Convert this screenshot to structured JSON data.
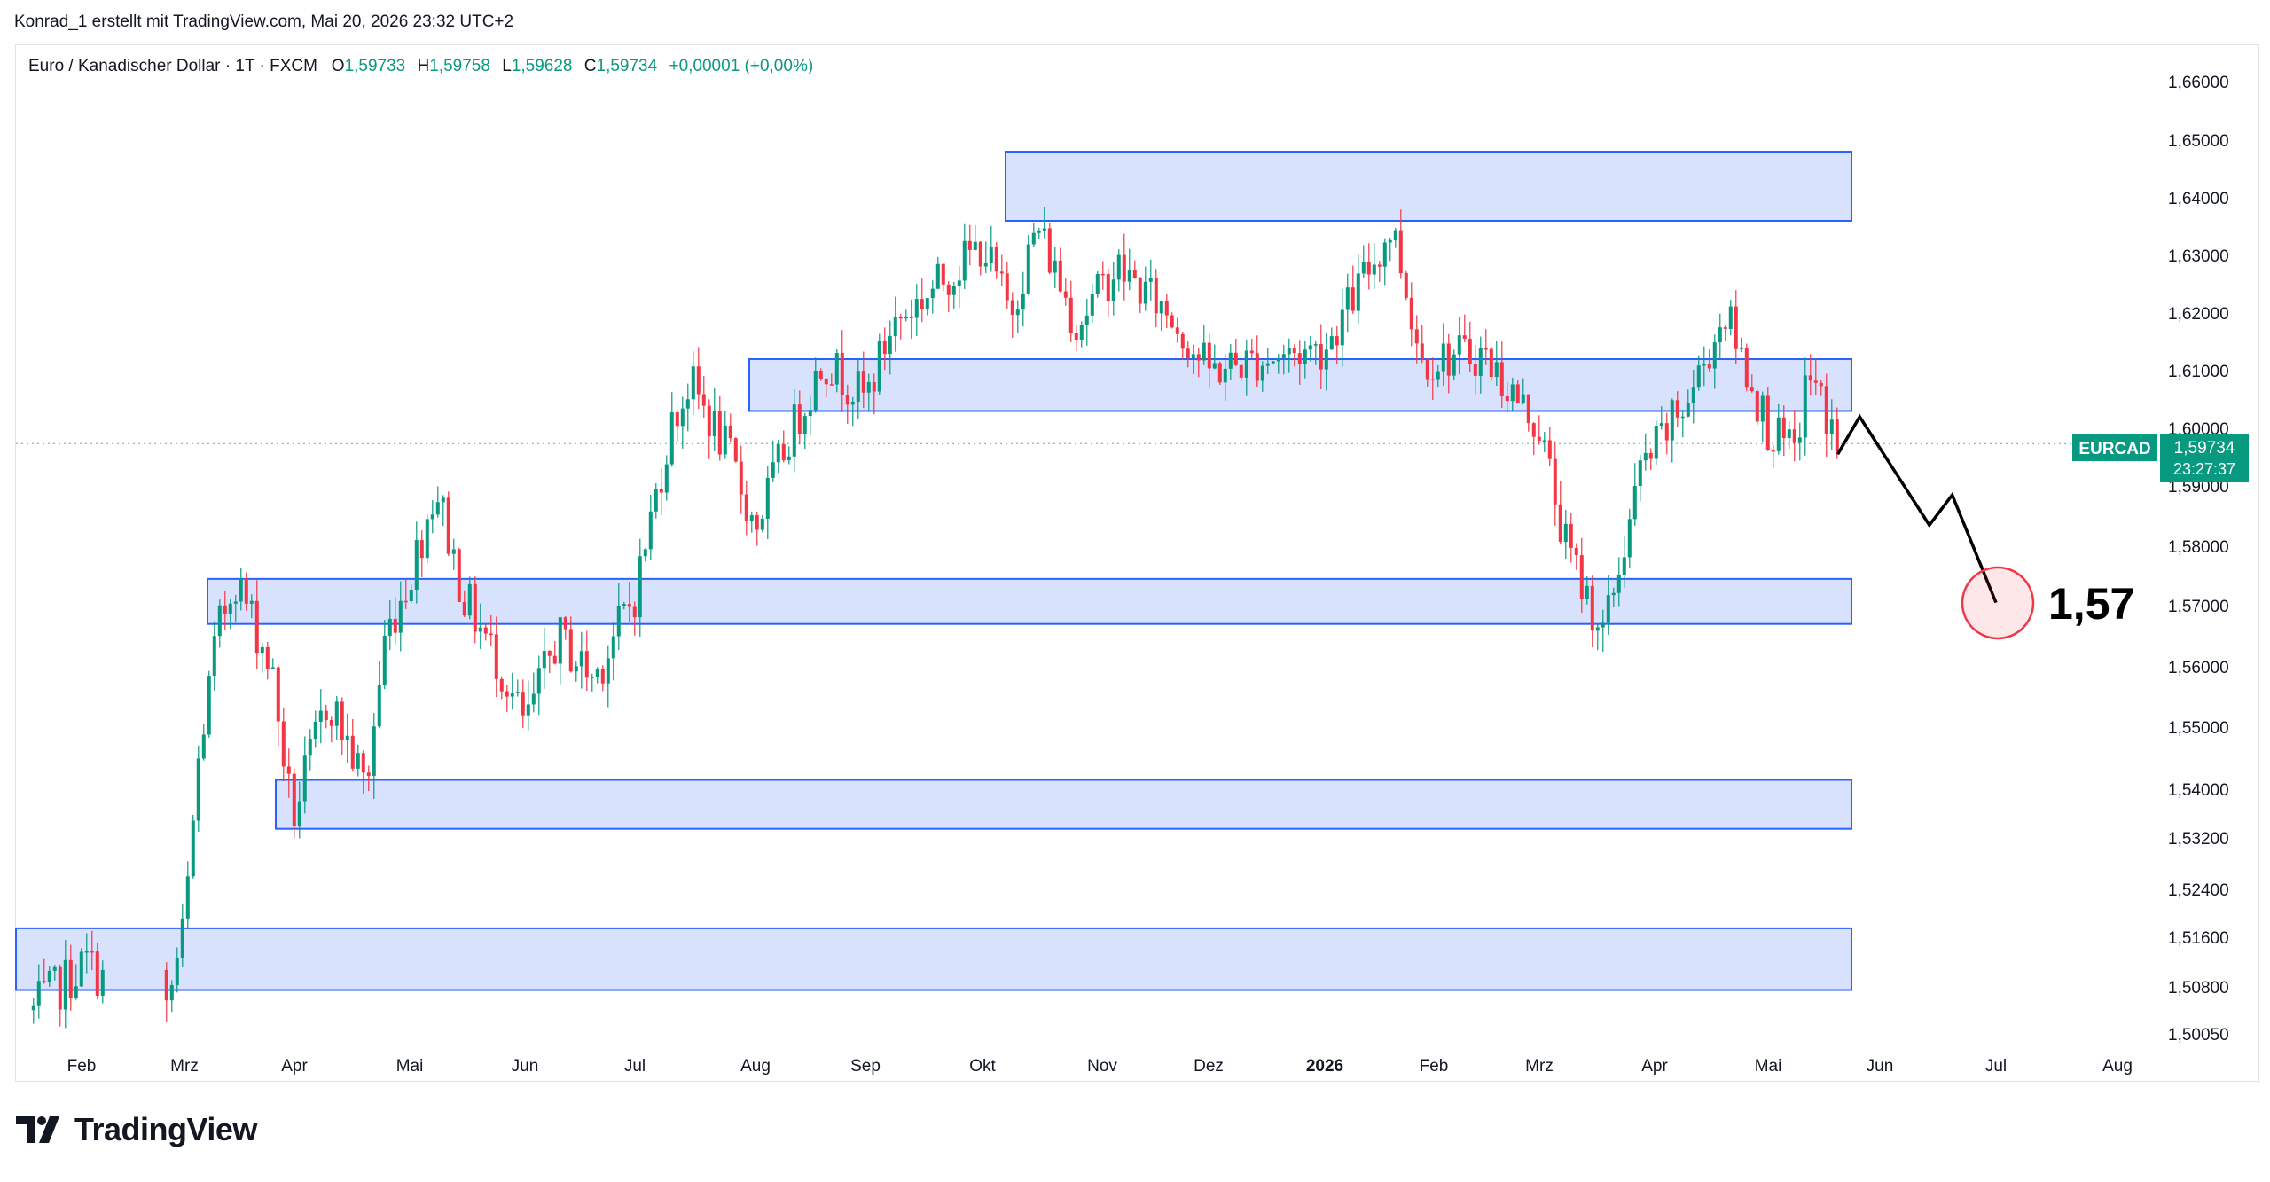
{
  "header": {
    "attribution": "Konrad_1 erstellt mit TradingView.com, Mai 20, 2026 23:32 UTC+2"
  },
  "legend": {
    "symbol_text": "Euro / Kanadischer Dollar · 1T · FXCM",
    "o_key": "O",
    "o_val": "1,59733",
    "h_key": "H",
    "h_val": "1,59758",
    "l_key": "L",
    "l_val": "1,59628",
    "c_key": "C",
    "c_val": "1,59734",
    "change": "+0,00001 (+0,00%)"
  },
  "price_tag": {
    "symbol": "EURCAD",
    "price": "1,59734",
    "countdown": "23:27:37"
  },
  "annotation": {
    "target_label": "1,57"
  },
  "brand": {
    "name": "TradingView"
  },
  "colors": {
    "up": "#089981",
    "down": "#f23645",
    "zone_fill": "#d6e0fd",
    "zone_border": "#2962ff",
    "target_circle": "#f23645"
  },
  "chart_data": {
    "type": "candlestick",
    "title": "Euro / Kanadischer Dollar · 1T · FXCM",
    "y_ticks": [
      "1,66000",
      "1,65000",
      "1,64000",
      "1,63000",
      "1,62000",
      "1,61000",
      "1,60000",
      "1,59000",
      "1,58000",
      "1,57000",
      "1,56000",
      "1,55000",
      "1,54000",
      "1,53200",
      "1,52400",
      "1,51600",
      "1,50800",
      "1,50050"
    ],
    "x_ticks": [
      "Feb",
      "Mrz",
      "Apr",
      "Mai",
      "Jun",
      "Jul",
      "Aug",
      "Sep",
      "Okt",
      "Nov",
      "Dez",
      "2026",
      "Feb",
      "Mrz",
      "Apr",
      "Mai",
      "Jun",
      "Jul",
      "Aug"
    ],
    "last_price": 1.59734,
    "zones": [
      {
        "from": "Okt",
        "to": "Mai",
        "top": 1.648,
        "bottom": 1.636
      },
      {
        "from": "Aug",
        "to": "Mai",
        "top": 1.612,
        "bottom": 1.603
      },
      {
        "from": "Mrz",
        "to": "Mai",
        "top": 1.5745,
        "bottom": 1.567
      },
      {
        "from": "Apr",
        "to": "Mai",
        "top": 1.5415,
        "bottom": 1.5335
      },
      {
        "from": "Jan",
        "to": "Mai",
        "top": 1.5175,
        "bottom": 1.5075
      }
    ],
    "projection": [
      {
        "date": "Mai 20, 2026",
        "price": 1.5955
      },
      {
        "date": "Mai 26, 2026",
        "price": 1.602
      },
      {
        "date": "Jun 14, 2026",
        "price": 1.5835
      },
      {
        "date": "Jun 20, 2026",
        "price": 1.5885
      },
      {
        "date": "Jul 1, 2026",
        "price": 1.5705
      }
    ],
    "target": 1.57,
    "anchors": [
      {
        "date": "Jan 15, 2025",
        "price": 1.503
      },
      {
        "date": "Feb 3, 2025",
        "price": 1.512
      },
      {
        "date": "Feb 25, 2025",
        "price": 1.5
      },
      {
        "date": "Mrz 1, 2025",
        "price": 1.518
      },
      {
        "date": "Mrz 5, 2025",
        "price": 1.545
      },
      {
        "date": "Mrz 10, 2025",
        "price": 1.565
      },
      {
        "date": "Mrz 15, 2025",
        "price": 1.575
      },
      {
        "date": "Mrz 25, 2025",
        "price": 1.56
      },
      {
        "date": "Mrz 31, 2025",
        "price": 1.535
      },
      {
        "date": "Apr 10, 2025",
        "price": 1.555
      },
      {
        "date": "Apr 20, 2025",
        "price": 1.54
      },
      {
        "date": "Apr 25, 2025",
        "price": 1.565
      },
      {
        "date": "Mai 1, 2025",
        "price": 1.575
      },
      {
        "date": "Mai 8, 2025",
        "price": 1.59
      },
      {
        "date": "Mai 15, 2025",
        "price": 1.572
      },
      {
        "date": "Mai 25, 2025",
        "price": 1.56
      },
      {
        "date": "Jun 1, 2025",
        "price": 1.55
      },
      {
        "date": "Jun 10, 2025",
        "price": 1.565
      },
      {
        "date": "Jun 20, 2025",
        "price": 1.558
      },
      {
        "date": "Jul 1, 2025",
        "price": 1.572
      },
      {
        "date": "Jul 10, 2025",
        "price": 1.6
      },
      {
        "date": "Jul 15, 2025",
        "price": 1.608
      },
      {
        "date": "Jul 25, 2025",
        "price": 1.595
      },
      {
        "date": "Aug 1, 2025",
        "price": 1.583
      },
      {
        "date": "Aug 10, 2025",
        "price": 1.598
      },
      {
        "date": "Aug 20, 2025",
        "price": 1.612
      },
      {
        "date": "Sep 1, 2025",
        "price": 1.605
      },
      {
        "date": "Sep 8, 2025",
        "price": 1.618
      },
      {
        "date": "Sep 20, 2025",
        "price": 1.625
      },
      {
        "date": "Okt 1, 2025",
        "price": 1.632
      },
      {
        "date": "Okt 8, 2025",
        "price": 1.62
      },
      {
        "date": "Okt 15, 2025",
        "price": 1.635
      },
      {
        "date": "Okt 25, 2025",
        "price": 1.618
      },
      {
        "date": "Nov 5, 2025",
        "price": 1.628
      },
      {
        "date": "Nov 20, 2025",
        "price": 1.62
      },
      {
        "date": "Dez 1, 2025",
        "price": 1.61
      },
      {
        "date": "Dez 15, 2025",
        "price": 1.612
      },
      {
        "date": "Jan 1, 2026",
        "price": 1.614
      },
      {
        "date": "Jan 20, 2026",
        "price": 1.635
      },
      {
        "date": "Jan 28, 2026",
        "price": 1.612
      },
      {
        "date": "Feb 15, 2026",
        "price": 1.613
      },
      {
        "date": "Mrz 1, 2026",
        "price": 1.6
      },
      {
        "date": "Mrz 8, 2026",
        "price": 1.58
      },
      {
        "date": "Mrz 18, 2026",
        "price": 1.565
      },
      {
        "date": "Mrz 28, 2026",
        "price": 1.593
      },
      {
        "date": "Apr 10, 2026",
        "price": 1.605
      },
      {
        "date": "Apr 20, 2026",
        "price": 1.62
      },
      {
        "date": "Mai 1, 2026",
        "price": 1.6
      },
      {
        "date": "Mai 8, 2026",
        "price": 1.595
      },
      {
        "date": "Mai 12, 2026",
        "price": 1.61
      },
      {
        "date": "Mai 20, 2026",
        "price": 1.5973
      }
    ]
  }
}
